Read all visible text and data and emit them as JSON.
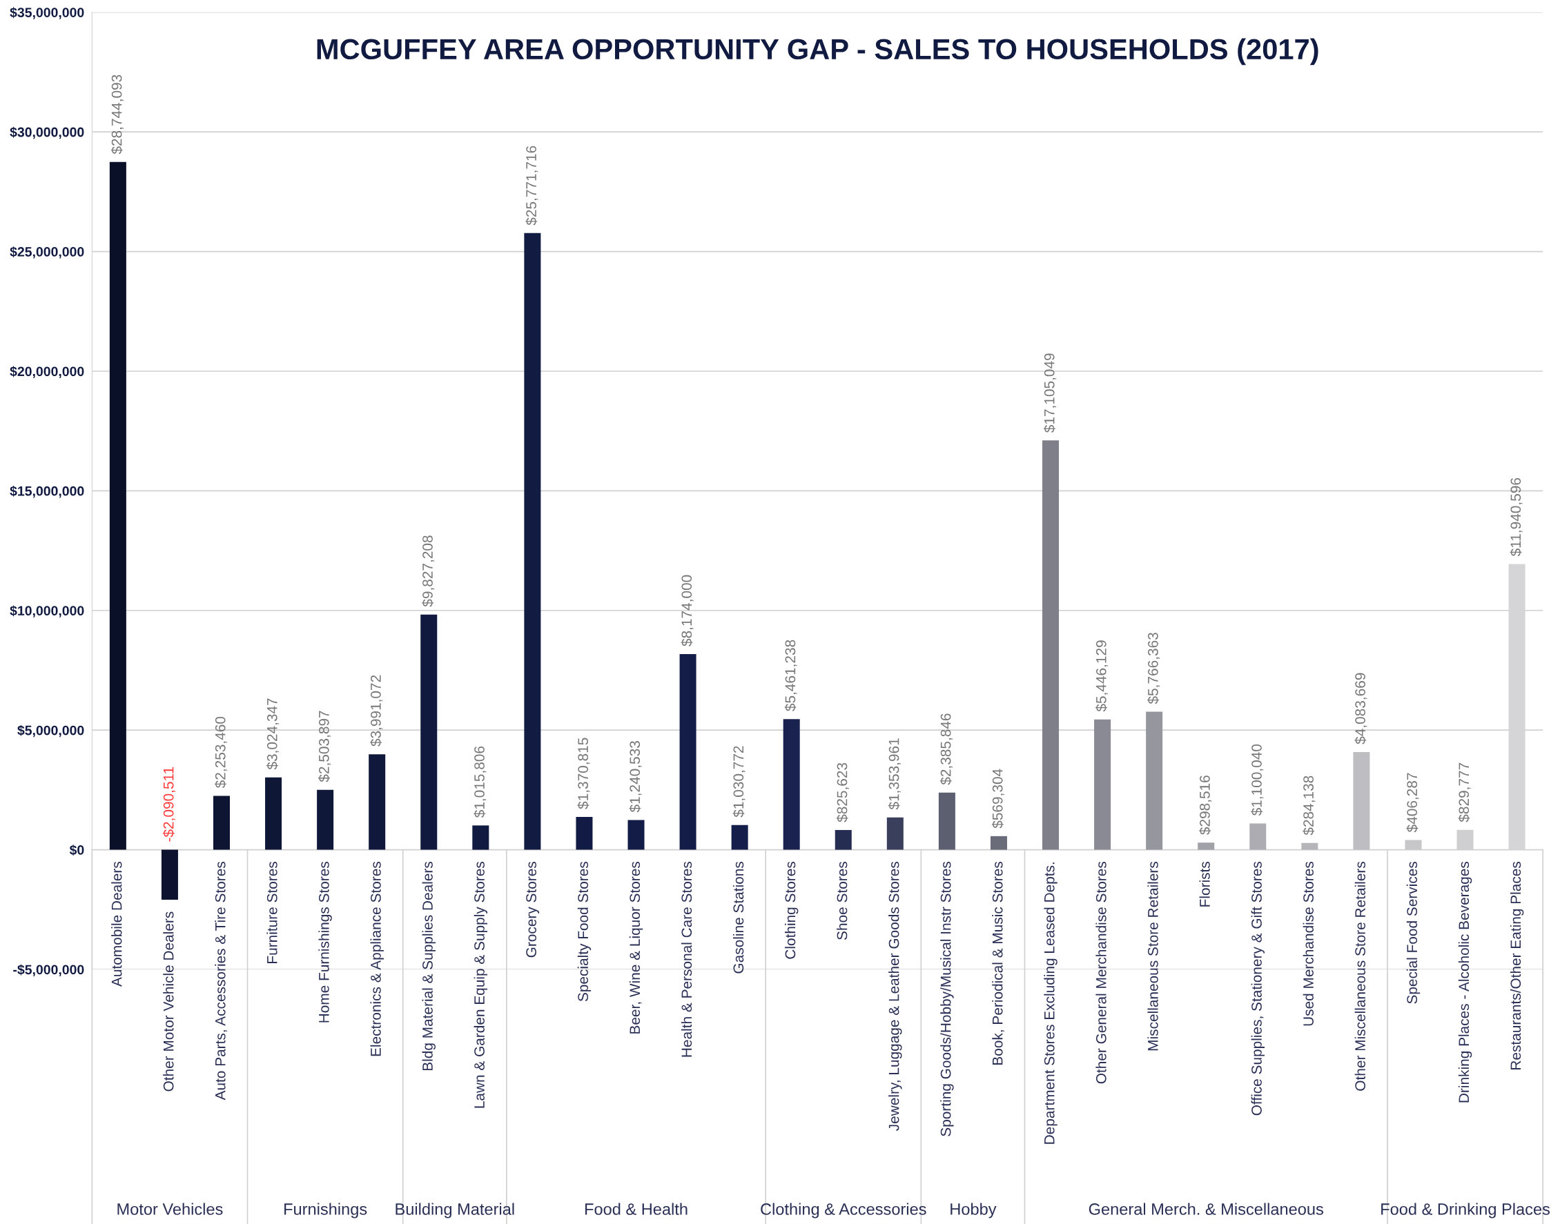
{
  "chart_data": {
    "type": "bar",
    "title": "MCGUFFEY AREA OPPORTUNITY GAP - SALES TO HOUSEHOLDS (2017)",
    "categories": [
      "Automobile Dealers",
      "Other Motor Vehicle Dealers",
      "Auto Parts, Accessories & Tire Stores",
      "Furniture Stores",
      "Home Furnishings Stores",
      "Electronics & Appliance Stores",
      "Bldg Material & Supplies Dealers",
      "Lawn & Garden Equip & Supply Stores",
      "Grocery Stores",
      "Specialty Food Stores",
      "Beer, Wine & Liquor Stores",
      "Health & Personal Care Stores",
      "Gasoline Stations",
      "Clothing Stores",
      "Shoe Stores",
      "Jewelry, Luggage & Leather Goods Stores",
      "Sporting Goods/Hobby/Musical Instr Stores",
      "Book, Periodical & Music Stores",
      "Department Stores Excluding Leased Depts.",
      "Other General Merchandise Stores",
      "Miscellaneous Store Retailers",
      "Florists",
      "Office Supplies, Stationery & Gift Stores",
      "Used Merchandise Stores",
      "Other Miscellaneous Store Retailers",
      "Special Food Services",
      "Drinking Places - Alcoholic Beverages",
      "Restaurants/Other Eating Places"
    ],
    "values": [
      28744093,
      -2090511,
      2253460,
      3024347,
      2503897,
      3991072,
      9827208,
      1015806,
      25771716,
      1370815,
      1240533,
      8174000,
      1030772,
      5461238,
      825623,
      1353961,
      2385846,
      569304,
      17105049,
      5446129,
      5766363,
      298516,
      1100040,
      284138,
      4083669,
      406287,
      829777,
      11940596
    ],
    "colors": [
      "#0b1029",
      "#0d132f",
      "#0e1533",
      "#0f1737",
      "#10183a",
      "#10193c",
      "#111a3e",
      "#111a40",
      "#121b42",
      "#121b44",
      "#131c46",
      "#141d48",
      "#151e4a",
      "#1a2350",
      "#262d52",
      "#3a3f5c",
      "#5c5f70",
      "#6a6c7a",
      "#7f7f8a",
      "#8a8a94",
      "#96969e",
      "#a1a1a8",
      "#acacb2",
      "#b5b5ba",
      "#bebec2",
      "#c7c7ca",
      "#cfcfd1",
      "#d5d5d7"
    ],
    "value_labels": [
      "$28,744,093",
      "-$2,090,511",
      "$2,253,460",
      "$3,024,347",
      "$2,503,897",
      "$3,991,072",
      "$9,827,208",
      "$1,015,806",
      "$25,771,716",
      "$1,370,815",
      "$1,240,533",
      "$8,174,000",
      "$1,030,772",
      "$5,461,238",
      "$825,623",
      "$1,353,961",
      "$2,385,846",
      "$569,304",
      "$17,105,049",
      "$5,446,129",
      "$5,766,363",
      "$298,516",
      "$1,100,040",
      "$284,138",
      "$4,083,669",
      "$406,287",
      "$829,777",
      "$11,940,596"
    ],
    "ylim": [
      -5000000,
      35000000
    ],
    "yticks": [
      {
        "value": -5000000,
        "label": "-$5,000,000"
      },
      {
        "value": 0,
        "label": "$0"
      },
      {
        "value": 5000000,
        "label": "$5,000,000"
      },
      {
        "value": 10000000,
        "label": "$10,000,000"
      },
      {
        "value": 15000000,
        "label": "$15,000,000"
      },
      {
        "value": 20000000,
        "label": "$20,000,000"
      },
      {
        "value": 25000000,
        "label": "$25,000,000"
      },
      {
        "value": 30000000,
        "label": "$30,000,000"
      },
      {
        "value": 35000000,
        "label": "$35,000,000"
      }
    ],
    "grid": "y",
    "annotations": [
      "Motor Vehicles",
      "Furnishings",
      "Building Material",
      "Food & Health",
      "Clothing & Accessories",
      "Hobby",
      "General Merch. & Miscellaneous",
      "Food & Drinking Places"
    ]
  }
}
